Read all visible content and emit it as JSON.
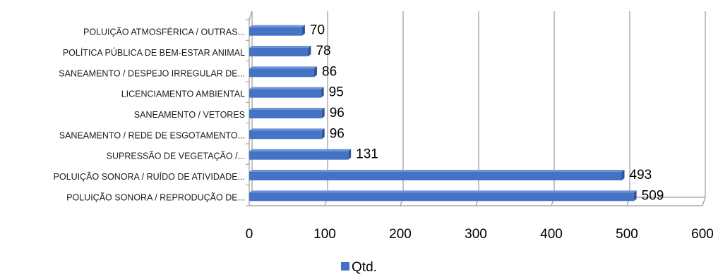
{
  "chart_data": {
    "type": "bar",
    "orientation": "horizontal",
    "style": "3d",
    "categories": [
      "POLUIÇÃO SONORA / REPRODUÇÃO DE...",
      "POLUIÇÃO SONORA / RUÍDO DE ATIVIDADE...",
      "SUPRESSÃO DE VEGETAÇÃO /...",
      "SANEAMENTO / REDE DE ESGOTAMENTO...",
      "SANEAMENTO / VETORES",
      "LICENCIAMENTO AMBIENTAL",
      "SANEAMENTO / DESPEJO IRREGULAR DE...",
      "POLÍTICA PÚBLICA DE BEM-ESTAR ANIMAL",
      "POLUIÇÃO ATMOSFÉRICA / OUTRAS..."
    ],
    "series": [
      {
        "name": "Qtd.",
        "values": [
          509,
          493,
          131,
          96,
          96,
          95,
          86,
          78,
          70
        ]
      }
    ],
    "xlim": [
      0,
      600
    ],
    "xticks": [
      "0",
      "100",
      "200",
      "300",
      "400",
      "500",
      "600"
    ],
    "grid": "vertical",
    "legend": "bottom",
    "data_labels": true,
    "color": "#4472C4"
  }
}
